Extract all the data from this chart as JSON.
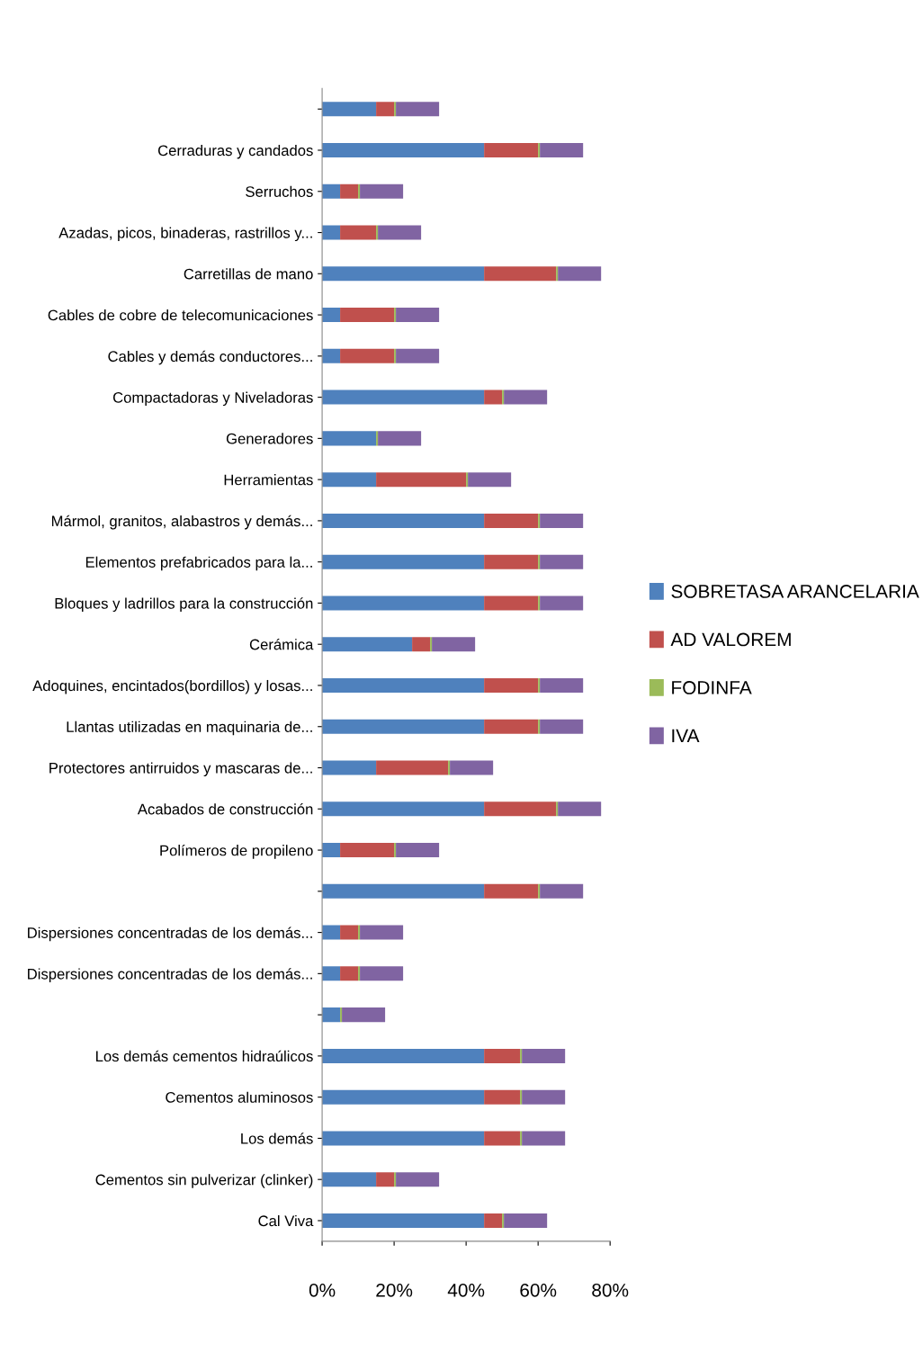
{
  "chart_data": {
    "type": "bar",
    "orientation": "horizontal",
    "stacked": true,
    "categories": [
      null,
      "Cerraduras y candados",
      "Serruchos",
      "Azadas, picos, binaderas, rastrillos y...",
      "Carretillas de mano",
      "Cables de cobre de telecomunicaciones",
      "Cables y demás conductores...",
      "Compactadoras y Niveladoras",
      "Generadores",
      "Herramientas",
      "Mármol, granitos, alabastros y demás...",
      "Elementos prefabricados para la...",
      "Bloques y ladrillos para la construcción",
      "Cerámica",
      "Adoquines, encintados(bordillos) y losas...",
      "Llantas utilizadas en maquinaria de...",
      "Protectores antirruidos y mascaras de...",
      "Acabados de construcción",
      "Polímeros de propileno",
      null,
      "Dispersiones concentradas de los demás...",
      "Dispersiones concentradas de los demás...",
      null,
      "Los demás cementos hidraúlicos",
      "Cementos aluminosos",
      "Los demás",
      "Cementos sin pulverizar (clinker)",
      "Cal Viva"
    ],
    "series": [
      {
        "name": "SOBRETASA ARANCELARIA",
        "color": "#4f81bd",
        "values": [
          15,
          45,
          5,
          5,
          45,
          5,
          5,
          45,
          15,
          15,
          45,
          45,
          45,
          25,
          45,
          45,
          15,
          45,
          5,
          45,
          5,
          5,
          5,
          45,
          45,
          45,
          15,
          45
        ]
      },
      {
        "name": "AD VALOREM",
        "color": "#c0504d",
        "values": [
          5,
          15,
          5,
          10,
          20,
          15,
          15,
          5,
          0,
          25,
          15,
          15,
          15,
          5,
          15,
          15,
          20,
          20,
          15,
          15,
          5,
          5,
          0,
          10,
          10,
          10,
          5,
          5
        ]
      },
      {
        "name": "FODINFA",
        "color": "#9bbb59",
        "values": [
          0.5,
          0.5,
          0.5,
          0.5,
          0.5,
          0.5,
          0.5,
          0.5,
          0.5,
          0.5,
          0.5,
          0.5,
          0.5,
          0.5,
          0.5,
          0.5,
          0.5,
          0.5,
          0.5,
          0.5,
          0.5,
          0.5,
          0.5,
          0.5,
          0.5,
          0.5,
          0.5,
          0.5
        ]
      },
      {
        "name": "IVA",
        "color": "#8064a2",
        "values": [
          12,
          12,
          12,
          12,
          12,
          12,
          12,
          12,
          12,
          12,
          12,
          12,
          12,
          12,
          12,
          12,
          12,
          12,
          12,
          12,
          12,
          12,
          12,
          12,
          12,
          12,
          12,
          12
        ]
      }
    ],
    "xlim": [
      0,
      80
    ],
    "xticks": [
      {
        "value": 0,
        "label": "0%"
      },
      {
        "value": 20,
        "label": "20%"
      },
      {
        "value": 40,
        "label": "40%"
      },
      {
        "value": 60,
        "label": "60%"
      },
      {
        "value": 80,
        "label": "80%"
      }
    ],
    "legend": "right",
    "grid": false
  }
}
